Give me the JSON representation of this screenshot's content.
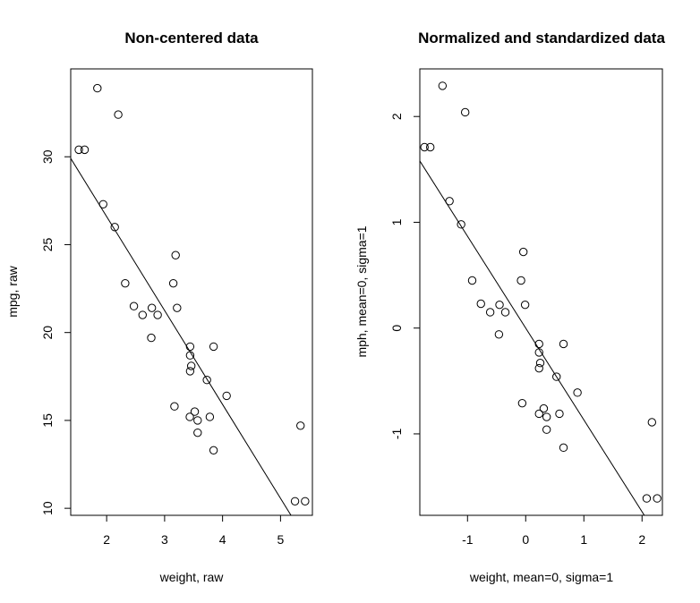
{
  "chart_data": [
    {
      "type": "scatter",
      "title": "Non-centered data",
      "xlabel": "weight, raw",
      "ylabel": "mpg, raw",
      "xlim": [
        1.38,
        5.55
      ],
      "ylim": [
        9.6,
        35.0
      ],
      "xticks": [
        2,
        3,
        4,
        5
      ],
      "yticks": [
        10,
        15,
        20,
        25,
        30
      ],
      "grid": false,
      "points": [
        [
          1.52,
          30.4
        ],
        [
          1.62,
          30.4
        ],
        [
          1.84,
          33.9
        ],
        [
          1.94,
          27.3
        ],
        [
          2.14,
          26.0
        ],
        [
          2.2,
          32.4
        ],
        [
          2.32,
          22.8
        ],
        [
          2.47,
          21.5
        ],
        [
          2.62,
          21.0
        ],
        [
          2.77,
          19.7
        ],
        [
          2.78,
          21.4
        ],
        [
          2.88,
          21.0
        ],
        [
          3.15,
          22.8
        ],
        [
          3.17,
          15.8
        ],
        [
          3.19,
          24.4
        ],
        [
          3.215,
          21.4
        ],
        [
          3.435,
          15.2
        ],
        [
          3.44,
          18.7
        ],
        [
          3.44,
          19.2
        ],
        [
          3.44,
          17.8
        ],
        [
          3.46,
          18.1
        ],
        [
          3.52,
          15.5
        ],
        [
          3.57,
          15.0
        ],
        [
          3.57,
          14.3
        ],
        [
          3.73,
          17.3
        ],
        [
          3.78,
          15.2
        ],
        [
          3.845,
          13.3
        ],
        [
          3.845,
          19.2
        ],
        [
          4.07,
          16.4
        ],
        [
          5.25,
          10.4
        ],
        [
          5.345,
          14.7
        ],
        [
          5.424,
          10.4
        ]
      ],
      "fit": {
        "intercept": 37.285,
        "slope": -5.344
      }
    },
    {
      "type": "scatter",
      "title": "Normalized and standardized data",
      "xlabel": "weight, mean=0, sigma=1",
      "ylabel": "mph, mean=0, sigma=1",
      "xlim": [
        -1.82,
        2.35
      ],
      "ylim": [
        -1.77,
        2.45
      ],
      "xticks": [
        -1,
        0,
        1,
        2
      ],
      "yticks": [
        -1,
        0,
        1,
        2
      ],
      "grid": false,
      "points": [
        [
          -1.74,
          1.71
        ],
        [
          -1.64,
          1.71
        ],
        [
          -1.43,
          2.29
        ],
        [
          -1.31,
          1.2
        ],
        [
          -1.11,
          0.98
        ],
        [
          -1.04,
          2.04
        ],
        [
          -0.92,
          0.45
        ],
        [
          -0.77,
          0.23
        ],
        [
          -0.61,
          0.15
        ],
        [
          -0.46,
          -0.06
        ],
        [
          -0.45,
          0.22
        ],
        [
          -0.35,
          0.15
        ],
        [
          -0.08,
          0.45
        ],
        [
          -0.06,
          -0.71
        ],
        [
          -0.04,
          0.72
        ],
        [
          -0.01,
          0.22
        ],
        [
          0.23,
          -0.81
        ],
        [
          0.23,
          -0.23
        ],
        [
          0.23,
          -0.15
        ],
        [
          0.23,
          -0.38
        ],
        [
          0.25,
          -0.33
        ],
        [
          0.31,
          -0.76
        ],
        [
          0.36,
          -0.84
        ],
        [
          0.36,
          -0.96
        ],
        [
          0.53,
          -0.46
        ],
        [
          0.58,
          -0.81
        ],
        [
          0.65,
          -1.13
        ],
        [
          0.65,
          -0.15
        ],
        [
          0.89,
          -0.61
        ],
        [
          2.08,
          -1.61
        ],
        [
          2.17,
          -0.89
        ],
        [
          2.26,
          -1.61
        ]
      ],
      "fit": {
        "intercept": 0.0,
        "slope": -0.868
      }
    }
  ]
}
